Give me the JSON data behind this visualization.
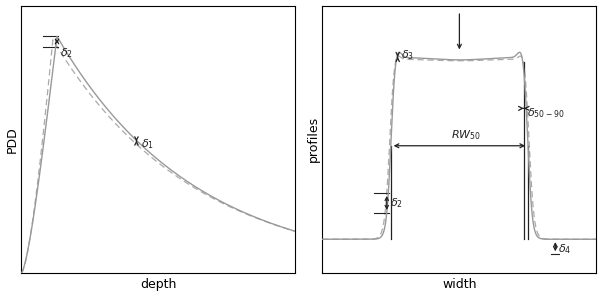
{
  "fig_width": 6.02,
  "fig_height": 2.97,
  "dpi": 100,
  "background": "#ffffff",
  "left_xlabel": "depth",
  "left_ylabel": "PDD",
  "right_xlabel": "width",
  "right_ylabel": "profiles",
  "annotation_color": "#222222",
  "curve_solid_color": "#999999",
  "curve_dashed_color": "#aaaaaa"
}
